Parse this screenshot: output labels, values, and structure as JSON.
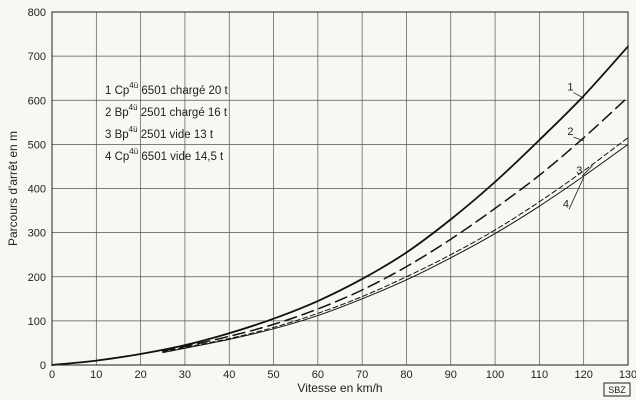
{
  "chart_data": {
    "type": "line",
    "xlabel": "Vitesse en km/h",
    "ylabel": "Parcours d'arrêt en m",
    "xlim": [
      0,
      130
    ],
    "ylim": [
      0,
      800
    ],
    "x_ticks": [
      0,
      10,
      20,
      30,
      40,
      50,
      60,
      70,
      80,
      90,
      100,
      110,
      120,
      130
    ],
    "y_ticks": [
      0,
      100,
      200,
      300,
      400,
      500,
      600,
      700,
      800
    ],
    "grid": true,
    "legend_position": "top-left",
    "legend": [
      {
        "num": "1",
        "vehicle": "Cp",
        "sup": "4ü",
        "text": "6501 chargé 20 t"
      },
      {
        "num": "2",
        "vehicle": "Bp",
        "sup": "4ü",
        "text": "2501 chargé 16 t"
      },
      {
        "num": "3",
        "vehicle": "Bp",
        "sup": "4ü",
        "text": "2501 vide 13 t"
      },
      {
        "num": "4",
        "vehicle": "Cp",
        "sup": "4ü",
        "text": "6501 vide 14,5 t"
      }
    ],
    "series": [
      {
        "label": "1",
        "style": "solid-thick",
        "x": [
          0,
          10,
          20,
          30,
          40,
          50,
          60,
          70,
          80,
          90,
          100,
          110,
          120,
          130
        ],
        "y": [
          0,
          10,
          25,
          45,
          72,
          105,
          145,
          195,
          255,
          330,
          415,
          510,
          610,
          722
        ]
      },
      {
        "label": "2",
        "style": "dashed-long",
        "x": [
          25,
          30,
          40,
          50,
          60,
          70,
          80,
          90,
          100,
          110,
          120,
          130
        ],
        "y": [
          32,
          42,
          65,
          92,
          127,
          170,
          223,
          285,
          355,
          430,
          515,
          607
        ]
      },
      {
        "label": "3",
        "style": "dashed-short",
        "x": [
          25,
          30,
          40,
          50,
          60,
          70,
          80,
          90,
          100,
          110,
          120,
          130
        ],
        "y": [
          30,
          40,
          60,
          85,
          117,
          155,
          200,
          250,
          306,
          370,
          440,
          515
        ]
      },
      {
        "label": "4",
        "style": "solid-thin",
        "x": [
          25,
          30,
          40,
          50,
          60,
          70,
          80,
          90,
          100,
          110,
          120,
          130
        ],
        "y": [
          28,
          38,
          58,
          82,
          112,
          150,
          193,
          243,
          298,
          360,
          428,
          500
        ]
      }
    ],
    "series_label_positions": [
      {
        "label": "1",
        "at_x": 117,
        "at_y": 622,
        "to_x": 120,
        "to_y": 605
      },
      {
        "label": "2",
        "at_x": 117,
        "at_y": 521,
        "to_x": 120,
        "to_y": 508
      },
      {
        "label": "3",
        "at_x": 119,
        "at_y": 433,
        "to_x": 122,
        "to_y": 452
      },
      {
        "label": "4",
        "at_x": 116,
        "at_y": 357,
        "to_x": 120,
        "to_y": 425
      }
    ],
    "stamp": "SBZ"
  }
}
